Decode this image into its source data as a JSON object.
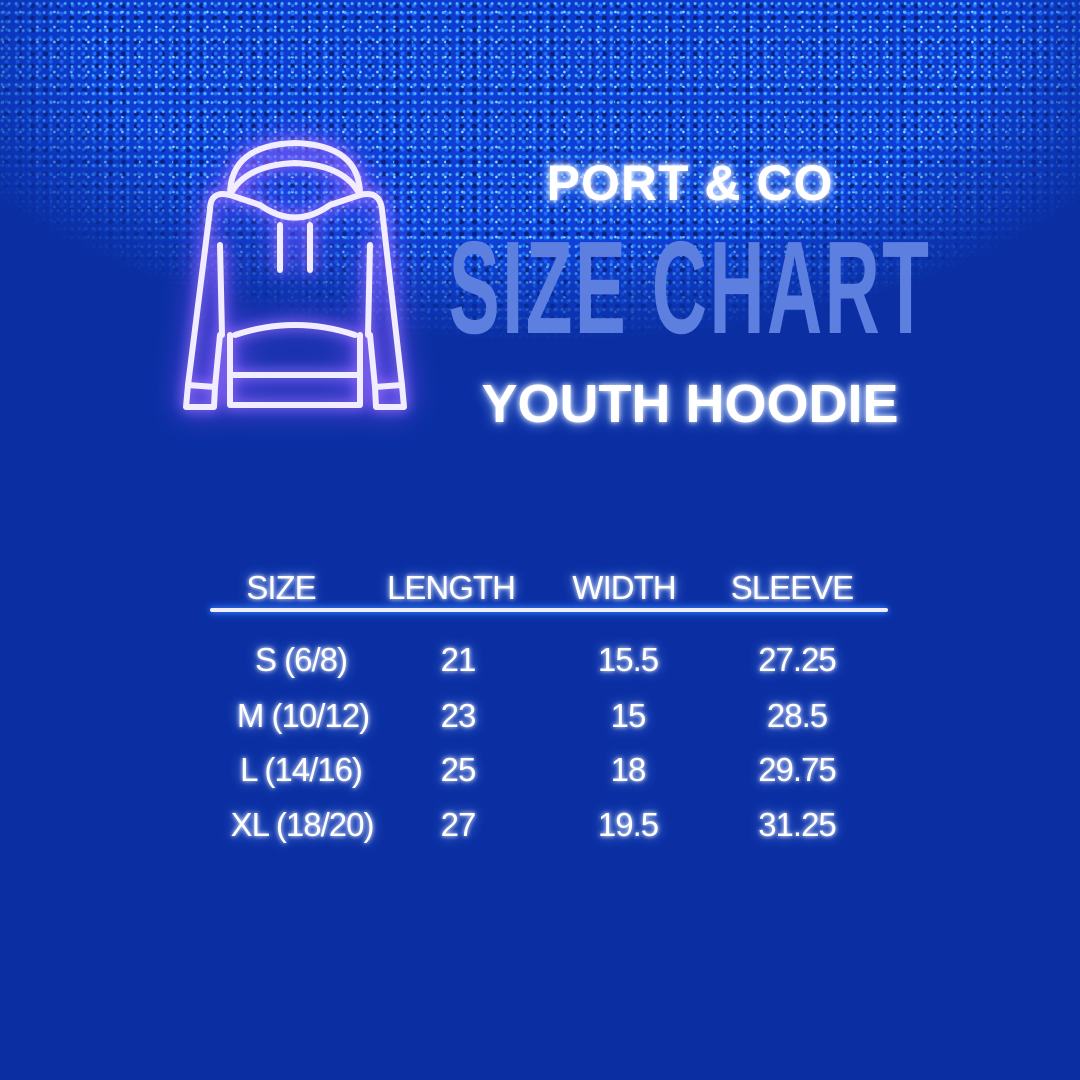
{
  "header": {
    "brand": "PORT & CO",
    "title": "SIZE CHART",
    "subtitle": "YOUTH HOODIE"
  },
  "icon": "hoodie-icon",
  "colors": {
    "background": "#0b2fa3",
    "title": "#5d7fe0",
    "glow": "#7c4dff"
  },
  "table": {
    "columns": [
      "SIZE",
      "LENGTH",
      "WIDTH",
      "SLEEVE"
    ],
    "rows": [
      [
        "S (6/8)",
        "21",
        "15.5",
        "27.25"
      ],
      [
        "M (10/12)",
        "23",
        "15",
        "28.5"
      ],
      [
        "L (14/16)",
        "25",
        "18",
        "29.75"
      ],
      [
        "XL (18/20)",
        "27",
        "19.5",
        "31.25"
      ]
    ]
  }
}
